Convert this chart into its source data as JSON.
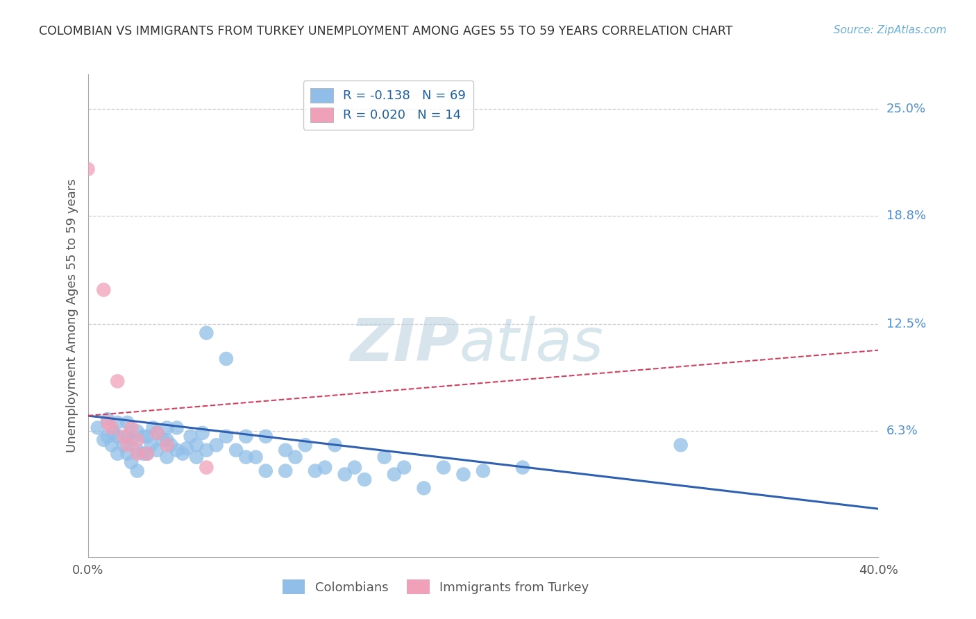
{
  "title": "COLOMBIAN VS IMMIGRANTS FROM TURKEY UNEMPLOYMENT AMONG AGES 55 TO 59 YEARS CORRELATION CHART",
  "source": "Source: ZipAtlas.com",
  "ylabel": "Unemployment Among Ages 55 to 59 years",
  "xlim": [
    0.0,
    0.4
  ],
  "ylim": [
    -0.01,
    0.27
  ],
  "ytick_positions": [
    0.0,
    0.063,
    0.125,
    0.188,
    0.25
  ],
  "ytick_labels": [
    "",
    "6.3%",
    "12.5%",
    "18.8%",
    "25.0%"
  ],
  "xtick_positions": [
    0.0,
    0.4
  ],
  "xtick_labels": [
    "0.0%",
    "40.0%"
  ],
  "legend_colombians": "Colombians",
  "legend_turkey": "Immigrants from Turkey",
  "R_colombians": "-0.138",
  "N_colombians": 69,
  "R_turkey": "0.020",
  "N_turkey": 14,
  "blue_color": "#90BEE8",
  "pink_color": "#F0A0B8",
  "blue_line_color": "#3060B0",
  "pink_line_color": "#D04060",
  "watermark_zip": "ZIP",
  "watermark_atlas": "atlas",
  "background_color": "#FFFFFF",
  "grid_color": "#C8C8D0",
  "blue_dots_x": [
    0.005,
    0.008,
    0.01,
    0.01,
    0.012,
    0.013,
    0.015,
    0.015,
    0.015,
    0.018,
    0.02,
    0.02,
    0.02,
    0.022,
    0.022,
    0.025,
    0.025,
    0.025,
    0.028,
    0.028,
    0.03,
    0.03,
    0.032,
    0.033,
    0.035,
    0.035,
    0.038,
    0.04,
    0.04,
    0.04,
    0.042,
    0.045,
    0.045,
    0.048,
    0.05,
    0.052,
    0.055,
    0.055,
    0.058,
    0.06,
    0.06,
    0.065,
    0.07,
    0.07,
    0.075,
    0.08,
    0.08,
    0.085,
    0.09,
    0.09,
    0.1,
    0.1,
    0.105,
    0.11,
    0.115,
    0.12,
    0.125,
    0.13,
    0.135,
    0.14,
    0.15,
    0.155,
    0.16,
    0.17,
    0.18,
    0.19,
    0.2,
    0.22,
    0.3
  ],
  "blue_dots_y": [
    0.065,
    0.058,
    0.06,
    0.07,
    0.055,
    0.062,
    0.05,
    0.06,
    0.068,
    0.055,
    0.05,
    0.06,
    0.068,
    0.045,
    0.058,
    0.04,
    0.052,
    0.063,
    0.05,
    0.06,
    0.05,
    0.06,
    0.055,
    0.065,
    0.052,
    0.062,
    0.058,
    0.048,
    0.058,
    0.065,
    0.055,
    0.052,
    0.065,
    0.05,
    0.053,
    0.06,
    0.055,
    0.048,
    0.062,
    0.052,
    0.12,
    0.055,
    0.06,
    0.105,
    0.052,
    0.048,
    0.06,
    0.048,
    0.04,
    0.06,
    0.052,
    0.04,
    0.048,
    0.055,
    0.04,
    0.042,
    0.055,
    0.038,
    0.042,
    0.035,
    0.048,
    0.038,
    0.042,
    0.03,
    0.042,
    0.038,
    0.04,
    0.042,
    0.055
  ],
  "pink_dots_x": [
    0.0,
    0.008,
    0.01,
    0.012,
    0.015,
    0.018,
    0.02,
    0.022,
    0.025,
    0.025,
    0.03,
    0.035,
    0.04,
    0.06
  ],
  "pink_dots_y": [
    0.215,
    0.145,
    0.068,
    0.065,
    0.092,
    0.06,
    0.055,
    0.065,
    0.05,
    0.058,
    0.05,
    0.062,
    0.055,
    0.042
  ],
  "blue_line_x0": 0.0,
  "blue_line_y0": 0.072,
  "blue_line_x1": 0.4,
  "blue_line_y1": 0.018,
  "pink_line_x0": 0.0,
  "pink_line_y0": 0.072,
  "pink_line_x1": 0.4,
  "pink_line_y1": 0.11
}
